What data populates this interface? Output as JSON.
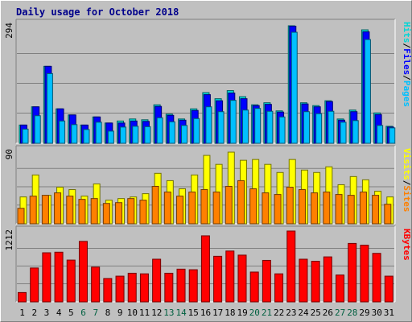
{
  "title": "Daily usage for October 2018",
  "colors": {
    "hits": "#00d6d6",
    "files": "#0000ff",
    "pages": "#00c0ff",
    "visits": "#ffff00",
    "sites": "#ff8000",
    "kbytes": "#ff0000",
    "weekend_label": "#006040",
    "title": "#00008b"
  },
  "chart_data": [
    {
      "type": "bar",
      "panel": "hits-files-pages",
      "categories": [
        "1",
        "2",
        "3",
        "4",
        "5",
        "6",
        "7",
        "8",
        "9",
        "10",
        "11",
        "12",
        "13",
        "14",
        "15",
        "16",
        "17",
        "18",
        "19",
        "20",
        "21",
        "22",
        "23",
        "24",
        "25",
        "26",
        "27",
        "28",
        "29",
        "30",
        "31"
      ],
      "weekend_days": [
        "6",
        "7",
        "13",
        "14",
        "20",
        "21",
        "27",
        "28"
      ],
      "ymax_label": "294",
      "ylim": [
        0,
        294
      ],
      "legend": [
        {
          "name": "Pages",
          "color": "#00c0ff"
        },
        {
          "name": "Files",
          "color": "#0000ff"
        },
        {
          "name": "Hits",
          "color": "#00d6d6"
        }
      ],
      "separator": "/",
      "series": [
        {
          "name": "Hits",
          "values": [
            45,
            90,
            190,
            85,
            70,
            45,
            65,
            50,
            55,
            60,
            58,
            95,
            72,
            60,
            85,
            125,
            110,
            130,
            115,
            95,
            100,
            80,
            290,
            100,
            93,
            105,
            60,
            82,
            280,
            75,
            42
          ]
        },
        {
          "name": "Files",
          "values": [
            45,
            90,
            190,
            85,
            70,
            45,
            65,
            50,
            50,
            55,
            54,
            91,
            69,
            57,
            81,
            120,
            105,
            124,
            110,
            93,
            96,
            77,
            289,
            97,
            90,
            103,
            57,
            78,
            275,
            71,
            40
          ]
        },
        {
          "name": "Pages",
          "values": [
            35,
            68,
            172,
            55,
            46,
            34,
            52,
            30,
            40,
            42,
            41,
            63,
            53,
            44,
            61,
            90,
            78,
            106,
            82,
            86,
            79,
            65,
            274,
            78,
            73,
            79,
            52,
            56,
            256,
            44,
            38
          ]
        }
      ]
    },
    {
      "type": "bar",
      "panel": "visits-sites",
      "categories": [
        "1",
        "2",
        "3",
        "4",
        "5",
        "6",
        "7",
        "8",
        "9",
        "10",
        "11",
        "12",
        "13",
        "14",
        "15",
        "16",
        "17",
        "18",
        "19",
        "20",
        "21",
        "22",
        "23",
        "24",
        "25",
        "26",
        "27",
        "28",
        "29",
        "30",
        "31"
      ],
      "ymax_label": "90",
      "ylim": [
        0,
        90
      ],
      "legend": [
        {
          "name": "Sites",
          "color": "#ff8000"
        },
        {
          "name": "Visits",
          "color": "#ffff00"
        }
      ],
      "separator": "/",
      "series": [
        {
          "name": "Visits",
          "values": [
            33,
            60,
            35,
            45,
            42,
            34,
            49,
            29,
            31,
            33,
            37,
            62,
            53,
            43,
            60,
            84,
            73,
            88,
            78,
            79,
            73,
            63,
            79,
            66,
            63,
            70,
            48,
            58,
            54,
            40,
            33
          ]
        },
        {
          "name": "Sites",
          "values": [
            19,
            34,
            35,
            38,
            34,
            30,
            31,
            25,
            26,
            31,
            29,
            46,
            39,
            34,
            39,
            42,
            39,
            46,
            53,
            43,
            38,
            36,
            45,
            42,
            38,
            39,
            36,
            35,
            39,
            35,
            24
          ]
        }
      ]
    },
    {
      "type": "bar",
      "panel": "kbytes",
      "categories": [
        "1",
        "2",
        "3",
        "4",
        "5",
        "6",
        "7",
        "8",
        "9",
        "10",
        "11",
        "12",
        "13",
        "14",
        "15",
        "16",
        "17",
        "18",
        "19",
        "20",
        "21",
        "22",
        "23",
        "24",
        "25",
        "26",
        "27",
        "28",
        "29",
        "30",
        "31"
      ],
      "ymax_label": "1212",
      "ylim": [
        0,
        1212
      ],
      "legend": [
        {
          "name": "KBytes",
          "color": "#ff0000"
        }
      ],
      "series": [
        {
          "name": "KBytes",
          "values": [
            160,
            580,
            840,
            850,
            715,
            1035,
            595,
            400,
            440,
            490,
            480,
            730,
            490,
            560,
            550,
            1130,
            780,
            870,
            800,
            510,
            710,
            480,
            1212,
            730,
            695,
            770,
            460,
            1000,
            970,
            830,
            440
          ]
        }
      ]
    }
  ]
}
